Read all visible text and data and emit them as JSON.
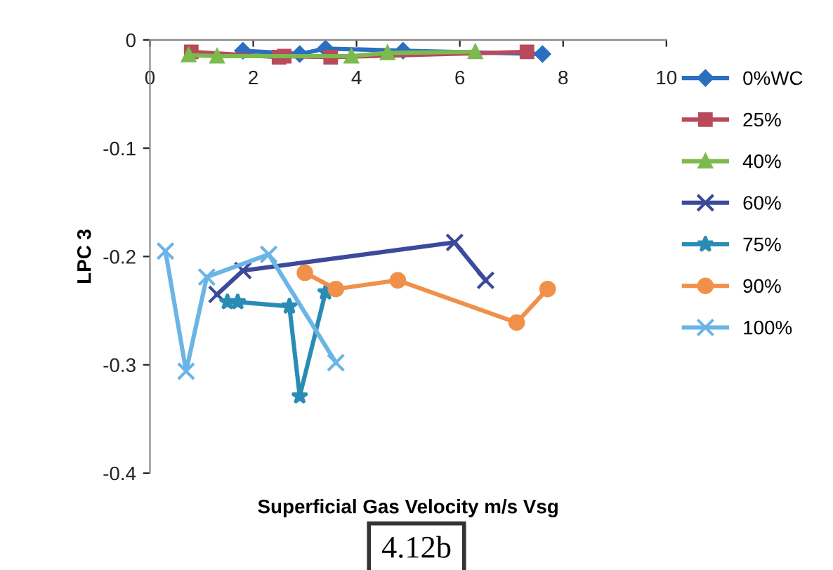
{
  "chart_data": {
    "type": "line",
    "xlabel": "Superficial Gas Velocity m/s Vsg",
    "ylabel": "LPC 3",
    "xlim": [
      0,
      10
    ],
    "xticks": [
      0,
      2,
      4,
      6,
      8,
      10
    ],
    "ylim": [
      -0.4,
      0
    ],
    "yticks": [
      -0.4,
      -0.3,
      -0.2,
      -0.1,
      0
    ],
    "grid": false,
    "legend": "right",
    "annotations": [
      "4.12b"
    ],
    "series": [
      {
        "name": "0%WC",
        "color": "#2a6fc0",
        "marker": "diamond",
        "x": [
          1.8,
          2.9,
          3.4,
          4.9,
          7.6
        ],
        "values": [
          -0.01,
          -0.013,
          -0.008,
          -0.01,
          -0.013
        ]
      },
      {
        "name": "25%",
        "color": "#b84a5c",
        "marker": "square",
        "x": [
          0.8,
          2.5,
          2.6,
          3.5,
          7.3
        ],
        "values": [
          -0.011,
          -0.016,
          -0.015,
          -0.016,
          -0.011
        ]
      },
      {
        "name": "40%",
        "color": "#7cb94f",
        "marker": "triangle",
        "x": [
          0.75,
          1.3,
          3.9,
          4.6,
          6.3
        ],
        "values": [
          -0.014,
          -0.015,
          -0.015,
          -0.012,
          -0.011
        ]
      },
      {
        "name": "60%",
        "color": "#3c4a9a",
        "marker": "cross",
        "x": [
          1.3,
          1.8,
          5.9,
          6.5
        ],
        "values": [
          -0.235,
          -0.213,
          -0.187,
          -0.222
        ]
      },
      {
        "name": "75%",
        "color": "#2a8cb5",
        "marker": "star",
        "x": [
          1.5,
          1.7,
          2.7,
          2.9,
          3.4
        ],
        "values": [
          -0.242,
          -0.242,
          -0.246,
          -0.329,
          -0.233
        ]
      },
      {
        "name": "90%",
        "color": "#f0904a",
        "marker": "circle",
        "x": [
          3.0,
          3.6,
          4.8,
          7.1,
          7.7
        ],
        "values": [
          -0.215,
          -0.23,
          -0.222,
          -0.261,
          -0.23
        ]
      },
      {
        "name": "100%",
        "color": "#6bb5e6",
        "marker": "cross",
        "x": [
          0.3,
          0.7,
          1.1,
          2.3,
          3.6
        ],
        "values": [
          -0.195,
          -0.306,
          -0.219,
          -0.198,
          -0.298
        ]
      }
    ]
  }
}
